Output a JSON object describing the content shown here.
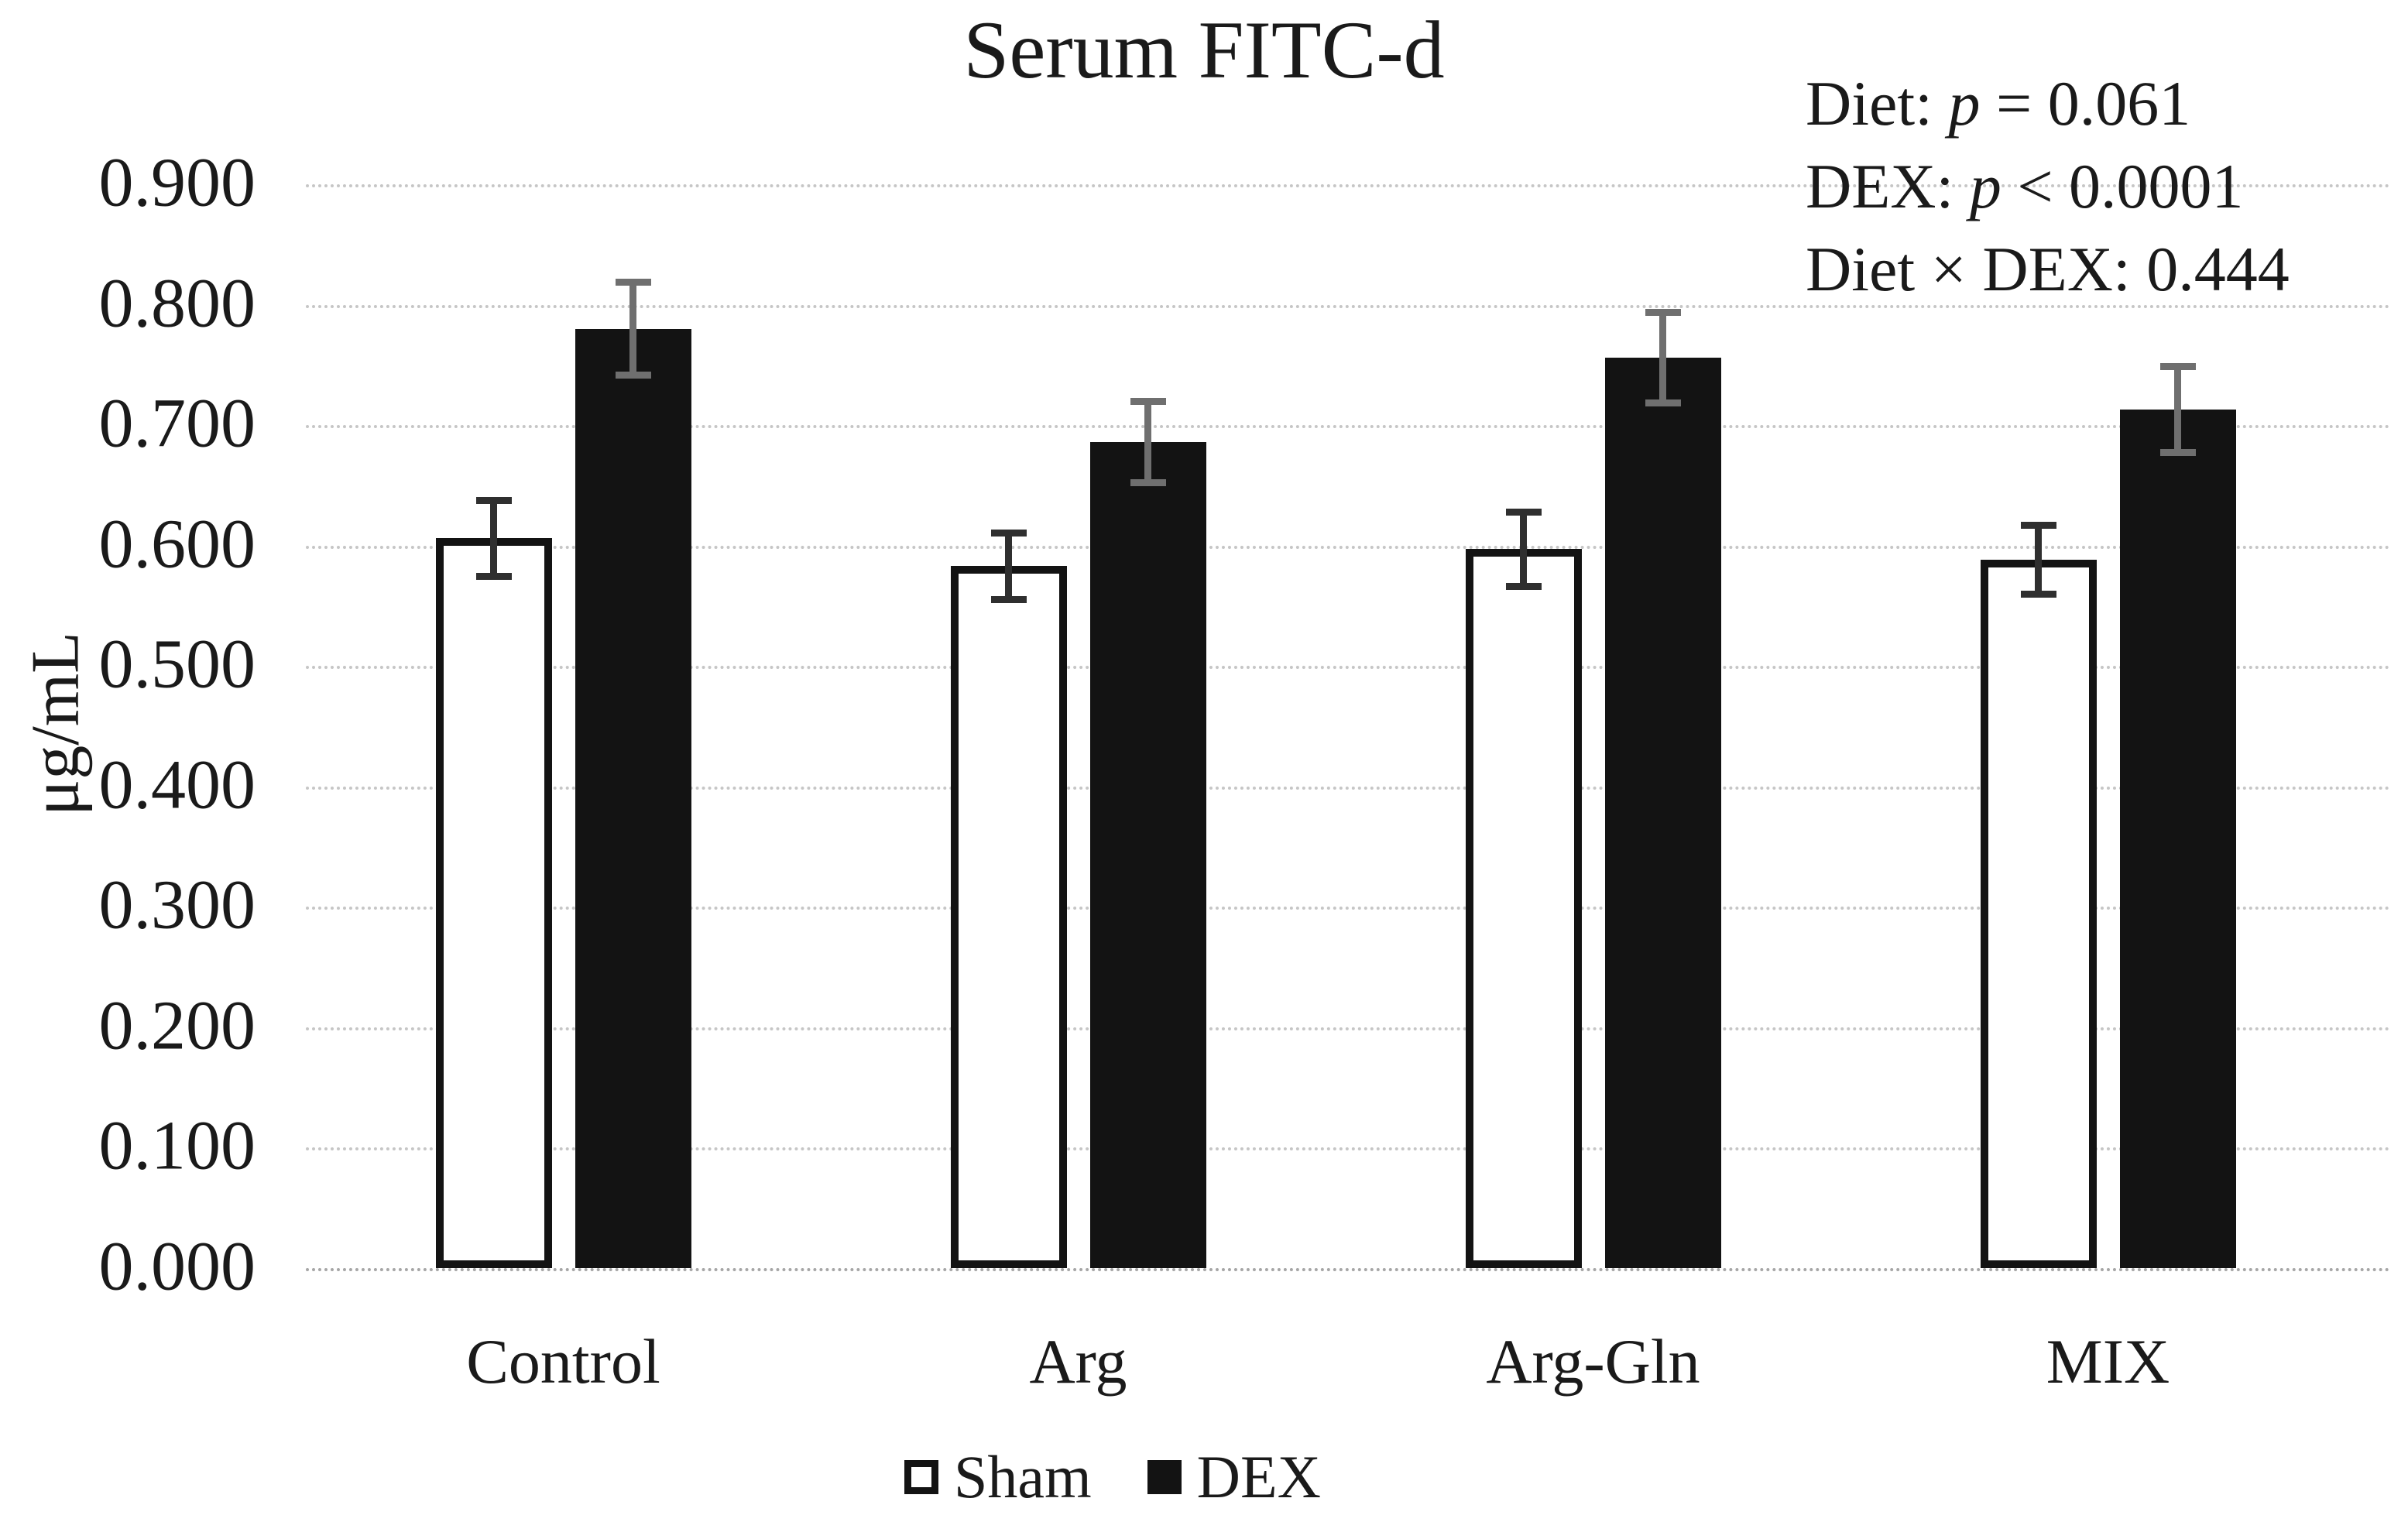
{
  "chart_data": {
    "type": "bar",
    "title": "Serum FITC-d",
    "xlabel": "",
    "ylabel": "μg/mL",
    "categories": [
      "Control",
      "Arg",
      "Arg-Gln",
      "MIX"
    ],
    "series": [
      {
        "name": "Sham",
        "fill": "#ffffff",
        "stroke": "#131313",
        "error_color": "#2f2f2f",
        "values": [
          0.606,
          0.583,
          0.597,
          0.588
        ],
        "errors": [
          0.032,
          0.028,
          0.031,
          0.029
        ]
      },
      {
        "name": "DEX",
        "fill": "#131313",
        "stroke": "#131313",
        "error_color": "#6f6f6f",
        "values": [
          0.78,
          0.686,
          0.756,
          0.713
        ],
        "errors": [
          0.039,
          0.034,
          0.038,
          0.036
        ]
      }
    ],
    "ylim": [
      0.0,
      0.9
    ],
    "ytick_step": 0.1,
    "ytick_labels": [
      "0.900",
      "0.800",
      "0.700",
      "0.600",
      "0.500",
      "0.400",
      "0.300",
      "0.200",
      "0.100",
      "0.000"
    ],
    "grid": true,
    "grid_style": "dotted",
    "legend_position": "bottom",
    "annotations": [
      {
        "segments": [
          {
            "text": "Diet: "
          },
          {
            "text": "p",
            "italic": true
          },
          {
            "text": " = 0.061"
          }
        ]
      },
      {
        "segments": [
          {
            "text": "DEX: "
          },
          {
            "text": "p",
            "italic": true
          },
          {
            "text": " < 0.0001"
          }
        ]
      },
      {
        "segments": [
          {
            "text": "Diet × DEX: 0.444"
          }
        ]
      }
    ],
    "colors": {
      "gridline": "#c6c6c6",
      "baseline": "#a6a6a6",
      "text": "#1a1a1a"
    }
  }
}
